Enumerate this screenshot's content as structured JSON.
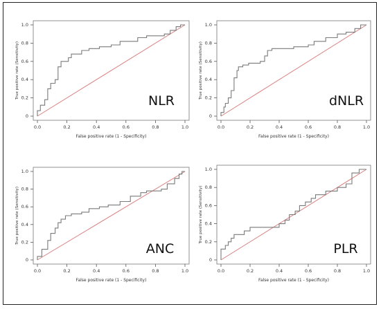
{
  "chart_data": [
    {
      "type": "line",
      "panel_label": "NLR",
      "xlabel": "False positive rate (1 - Specificity)",
      "ylabel": "True positive rate (Sensitivity)",
      "xlim": [
        0,
        1
      ],
      "ylim": [
        0,
        1
      ],
      "xticks": [
        "0.0",
        "0.2",
        "0.4",
        "0.6",
        "0.8",
        "1.0"
      ],
      "yticks": [
        "0",
        "0.2",
        "0.4",
        "0.6",
        "0.8",
        "1.0"
      ],
      "grid": false,
      "colors": {
        "roc": "#7a7a7a",
        "diagonal": "#d98080"
      },
      "roc": [
        [
          0,
          0
        ],
        [
          0,
          0.06
        ],
        [
          0.02,
          0.06
        ],
        [
          0.02,
          0.12
        ],
        [
          0.05,
          0.12
        ],
        [
          0.05,
          0.18
        ],
        [
          0.07,
          0.18
        ],
        [
          0.07,
          0.3
        ],
        [
          0.09,
          0.3
        ],
        [
          0.09,
          0.36
        ],
        [
          0.12,
          0.36
        ],
        [
          0.12,
          0.4
        ],
        [
          0.14,
          0.4
        ],
        [
          0.14,
          0.54
        ],
        [
          0.16,
          0.54
        ],
        [
          0.16,
          0.6
        ],
        [
          0.21,
          0.6
        ],
        [
          0.21,
          0.64
        ],
        [
          0.23,
          0.64
        ],
        [
          0.23,
          0.68
        ],
        [
          0.3,
          0.68
        ],
        [
          0.3,
          0.72
        ],
        [
          0.35,
          0.72
        ],
        [
          0.35,
          0.74
        ],
        [
          0.42,
          0.74
        ],
        [
          0.42,
          0.76
        ],
        [
          0.5,
          0.76
        ],
        [
          0.5,
          0.78
        ],
        [
          0.56,
          0.78
        ],
        [
          0.56,
          0.82
        ],
        [
          0.68,
          0.82
        ],
        [
          0.68,
          0.86
        ],
        [
          0.74,
          0.86
        ],
        [
          0.74,
          0.88
        ],
        [
          0.86,
          0.88
        ],
        [
          0.86,
          0.9
        ],
        [
          0.9,
          0.9
        ],
        [
          0.9,
          0.94
        ],
        [
          0.94,
          0.94
        ],
        [
          0.94,
          0.98
        ],
        [
          0.97,
          0.98
        ],
        [
          0.97,
          1
        ],
        [
          1,
          1
        ]
      ],
      "diagonal": [
        [
          0,
          0
        ],
        [
          1,
          1
        ]
      ]
    },
    {
      "type": "line",
      "panel_label": "dNLR",
      "xlabel": "False positive rate (1 - Specificity)",
      "ylabel": "True positive rate (Sensitivity)",
      "xlim": [
        0,
        1
      ],
      "ylim": [
        0,
        1
      ],
      "xticks": [
        "0.0",
        "0.2",
        "0.4",
        "0.6",
        "0.8",
        "1.0"
      ],
      "yticks": [
        "0",
        "0.2",
        "0.4",
        "0.6",
        "0.8",
        "1.0"
      ],
      "grid": false,
      "colors": {
        "roc": "#7a7a7a",
        "diagonal": "#d98080"
      },
      "roc": [
        [
          0,
          0
        ],
        [
          0,
          0.04
        ],
        [
          0.02,
          0.04
        ],
        [
          0.02,
          0.1
        ],
        [
          0.03,
          0.1
        ],
        [
          0.03,
          0.14
        ],
        [
          0.05,
          0.14
        ],
        [
          0.05,
          0.2
        ],
        [
          0.07,
          0.2
        ],
        [
          0.07,
          0.28
        ],
        [
          0.09,
          0.28
        ],
        [
          0.09,
          0.42
        ],
        [
          0.11,
          0.42
        ],
        [
          0.11,
          0.5
        ],
        [
          0.12,
          0.5
        ],
        [
          0.12,
          0.54
        ],
        [
          0.15,
          0.54
        ],
        [
          0.15,
          0.56
        ],
        [
          0.19,
          0.56
        ],
        [
          0.19,
          0.58
        ],
        [
          0.27,
          0.58
        ],
        [
          0.27,
          0.6
        ],
        [
          0.3,
          0.6
        ],
        [
          0.3,
          0.66
        ],
        [
          0.32,
          0.66
        ],
        [
          0.32,
          0.72
        ],
        [
          0.35,
          0.72
        ],
        [
          0.35,
          0.74
        ],
        [
          0.5,
          0.74
        ],
        [
          0.5,
          0.76
        ],
        [
          0.6,
          0.76
        ],
        [
          0.6,
          0.78
        ],
        [
          0.64,
          0.78
        ],
        [
          0.64,
          0.82
        ],
        [
          0.72,
          0.82
        ],
        [
          0.72,
          0.86
        ],
        [
          0.8,
          0.86
        ],
        [
          0.8,
          0.9
        ],
        [
          0.86,
          0.9
        ],
        [
          0.86,
          0.92
        ],
        [
          0.92,
          0.92
        ],
        [
          0.92,
          0.96
        ],
        [
          0.96,
          0.96
        ],
        [
          0.96,
          1
        ],
        [
          1,
          1
        ]
      ],
      "diagonal": [
        [
          0,
          0
        ],
        [
          1,
          1
        ]
      ]
    },
    {
      "type": "line",
      "panel_label": "ANC",
      "xlabel": "False positive rate (1 - Specificity)",
      "ylabel": "True positive rate (Sensitivity)",
      "xlim": [
        0,
        1
      ],
      "ylim": [
        0,
        1
      ],
      "xticks": [
        "0.0",
        "0.2",
        "0.4",
        "0.6",
        "0.8",
        "1.0"
      ],
      "yticks": [
        "0",
        "0.2",
        "0.4",
        "0.6",
        "0.8",
        "1.0"
      ],
      "grid": false,
      "colors": {
        "roc": "#7a7a7a",
        "diagonal": "#d98080"
      },
      "roc": [
        [
          0,
          0
        ],
        [
          0,
          0.04
        ],
        [
          0.03,
          0.04
        ],
        [
          0.03,
          0.12
        ],
        [
          0.07,
          0.12
        ],
        [
          0.07,
          0.22
        ],
        [
          0.09,
          0.22
        ],
        [
          0.09,
          0.3
        ],
        [
          0.12,
          0.3
        ],
        [
          0.12,
          0.36
        ],
        [
          0.14,
          0.36
        ],
        [
          0.14,
          0.42
        ],
        [
          0.16,
          0.42
        ],
        [
          0.16,
          0.46
        ],
        [
          0.19,
          0.46
        ],
        [
          0.19,
          0.5
        ],
        [
          0.23,
          0.5
        ],
        [
          0.23,
          0.52
        ],
        [
          0.3,
          0.52
        ],
        [
          0.3,
          0.54
        ],
        [
          0.35,
          0.54
        ],
        [
          0.35,
          0.58
        ],
        [
          0.42,
          0.58
        ],
        [
          0.42,
          0.6
        ],
        [
          0.48,
          0.6
        ],
        [
          0.48,
          0.62
        ],
        [
          0.56,
          0.62
        ],
        [
          0.56,
          0.66
        ],
        [
          0.63,
          0.66
        ],
        [
          0.63,
          0.72
        ],
        [
          0.7,
          0.72
        ],
        [
          0.7,
          0.76
        ],
        [
          0.74,
          0.76
        ],
        [
          0.74,
          0.78
        ],
        [
          0.84,
          0.78
        ],
        [
          0.84,
          0.8
        ],
        [
          0.88,
          0.8
        ],
        [
          0.88,
          0.86
        ],
        [
          0.93,
          0.86
        ],
        [
          0.93,
          0.92
        ],
        [
          0.96,
          0.92
        ],
        [
          0.96,
          0.97
        ],
        [
          0.98,
          0.97
        ],
        [
          0.98,
          1
        ],
        [
          1,
          1
        ]
      ],
      "diagonal": [
        [
          0,
          0
        ],
        [
          1,
          1
        ]
      ]
    },
    {
      "type": "line",
      "panel_label": "PLR",
      "xlabel": "False positive rate (1 - Specificity)",
      "ylabel": "True positive rate (Sensitivity)",
      "xlim": [
        0,
        1
      ],
      "ylim": [
        0,
        1
      ],
      "xticks": [
        "0.0",
        "0.2",
        "0.4",
        "0.6",
        "0.8",
        "1.0"
      ],
      "yticks": [
        "0",
        "0.2",
        "0.4",
        "0.6",
        "0.8",
        "1.0"
      ],
      "grid": false,
      "colors": {
        "roc": "#7a7a7a",
        "diagonal": "#d98080"
      },
      "roc": [
        [
          0,
          0
        ],
        [
          0,
          0.12
        ],
        [
          0.03,
          0.12
        ],
        [
          0.03,
          0.16
        ],
        [
          0.05,
          0.16
        ],
        [
          0.05,
          0.2
        ],
        [
          0.07,
          0.2
        ],
        [
          0.07,
          0.24
        ],
        [
          0.09,
          0.24
        ],
        [
          0.09,
          0.28
        ],
        [
          0.16,
          0.28
        ],
        [
          0.16,
          0.32
        ],
        [
          0.2,
          0.32
        ],
        [
          0.2,
          0.36
        ],
        [
          0.4,
          0.36
        ],
        [
          0.4,
          0.4
        ],
        [
          0.44,
          0.4
        ],
        [
          0.44,
          0.44
        ],
        [
          0.47,
          0.44
        ],
        [
          0.47,
          0.5
        ],
        [
          0.51,
          0.5
        ],
        [
          0.51,
          0.54
        ],
        [
          0.54,
          0.54
        ],
        [
          0.54,
          0.6
        ],
        [
          0.58,
          0.6
        ],
        [
          0.58,
          0.64
        ],
        [
          0.62,
          0.64
        ],
        [
          0.62,
          0.68
        ],
        [
          0.65,
          0.68
        ],
        [
          0.65,
          0.72
        ],
        [
          0.72,
          0.72
        ],
        [
          0.72,
          0.76
        ],
        [
          0.8,
          0.76
        ],
        [
          0.8,
          0.8
        ],
        [
          0.86,
          0.8
        ],
        [
          0.86,
          0.84
        ],
        [
          0.9,
          0.84
        ],
        [
          0.9,
          0.96
        ],
        [
          0.95,
          0.96
        ],
        [
          0.95,
          1
        ],
        [
          1,
          1
        ]
      ],
      "diagonal": [
        [
          0,
          0
        ],
        [
          1,
          1
        ]
      ]
    }
  ]
}
